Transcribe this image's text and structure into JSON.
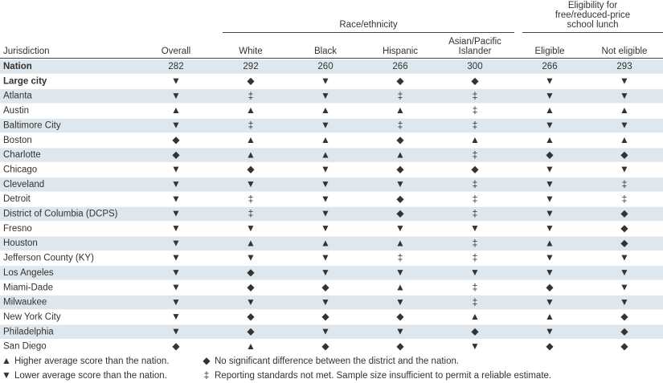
{
  "header": {
    "groups": [
      [
        "Race/ethnicity"
      ],
      [
        "Eligibility for",
        "free/reduced-price",
        "school lunch"
      ]
    ],
    "columns": [
      [
        "Jurisdiction"
      ],
      [
        "Overall"
      ],
      [
        "White"
      ],
      [
        "Black"
      ],
      [
        "Hispanic"
      ],
      [
        "Asian/Pacific",
        "Islander"
      ],
      [
        "Eligible"
      ],
      [
        "Not eligible"
      ]
    ]
  },
  "table": {
    "rows": [
      {
        "label": "Nation",
        "label_color": "#e8532b",
        "cells": [
          282,
          292,
          260,
          266,
          300,
          266,
          293
        ]
      },
      {
        "label": "Large city",
        "label_color": "#e8532b",
        "cells": [
          "▼",
          "◆",
          "▼",
          "◆",
          "◆",
          "▼",
          "▼"
        ]
      },
      {
        "label": "Atlanta",
        "cells": [
          "▼",
          "‡",
          "▼",
          "‡",
          "‡",
          "▼",
          "▼"
        ]
      },
      {
        "label": "Austin",
        "cells": [
          "▲",
          "▲",
          "▲",
          "▲",
          "‡",
          "▲",
          "▲"
        ]
      },
      {
        "label": "Baltimore City",
        "cells": [
          "▼",
          "‡",
          "▼",
          "‡",
          "‡",
          "▼",
          "▼"
        ]
      },
      {
        "label": "Boston",
        "cells": [
          "◆",
          "▲",
          "▲",
          "◆",
          "▲",
          "▲",
          "▲"
        ]
      },
      {
        "label": "Charlotte",
        "cells": [
          "◆",
          "▲",
          "▲",
          "▲",
          "‡",
          "◆",
          "◆"
        ]
      },
      {
        "label": "Chicago",
        "cells": [
          "▼",
          "◆",
          "▼",
          "◆",
          "◆",
          "▼",
          "▼"
        ]
      },
      {
        "label": "Cleveland",
        "cells": [
          "▼",
          "▼",
          "▼",
          "▼",
          "‡",
          "▼",
          "‡"
        ]
      },
      {
        "label": "Detroit",
        "cells": [
          "▼",
          "‡",
          "▼",
          "◆",
          "‡",
          "▼",
          "‡"
        ]
      },
      {
        "label": "District of Columbia (DCPS)",
        "cells": [
          "▼",
          "‡",
          "▼",
          "◆",
          "‡",
          "▼",
          "◆"
        ]
      },
      {
        "label": "Fresno",
        "cells": [
          "▼",
          "▼",
          "▼",
          "▼",
          "▼",
          "▼",
          "◆"
        ]
      },
      {
        "label": "Houston",
        "cells": [
          "▼",
          "▲",
          "▲",
          "▲",
          "‡",
          "▲",
          "◆"
        ]
      },
      {
        "label": "Jefferson County (KY)",
        "cells": [
          "▼",
          "▼",
          "▼",
          "‡",
          "‡",
          "▼",
          "▼"
        ]
      },
      {
        "label": "Los Angeles",
        "cells": [
          "▼",
          "◆",
          "▼",
          "▼",
          "▼",
          "▼",
          "▼"
        ]
      },
      {
        "label": "Miami-Dade",
        "cells": [
          "▼",
          "◆",
          "◆",
          "▲",
          "‡",
          "◆",
          "▼"
        ]
      },
      {
        "label": "Milwaukee",
        "cells": [
          "▼",
          "▼",
          "▼",
          "▼",
          "‡",
          "▼",
          "▼"
        ]
      },
      {
        "label": "New York City",
        "cells": [
          "▼",
          "◆",
          "◆",
          "◆",
          "▲",
          "▲",
          "◆"
        ]
      },
      {
        "label": "Philadelphia",
        "cells": [
          "▼",
          "◆",
          "▼",
          "▼",
          "◆",
          "▼",
          "◆"
        ]
      },
      {
        "label": "San Diego",
        "cells": [
          "◆",
          "▲",
          "◆",
          "◆",
          "▼",
          "◆",
          "◆"
        ]
      }
    ]
  },
  "legend": [
    {
      "symbol": "▲",
      "color": "#e8532b",
      "text": "Higher average score than the nation."
    },
    {
      "symbol": "▼",
      "color": "#13778f",
      "text": "Lower average score than the nation."
    },
    {
      "symbol": "◆",
      "color": "#a89f8f",
      "text": "No significant difference between the district and the nation."
    },
    {
      "symbol": "‡",
      "color": "#6b6b6b",
      "text": "Reporting standards not met. Sample size insufficient to permit a reliable estimate."
    }
  ]
}
